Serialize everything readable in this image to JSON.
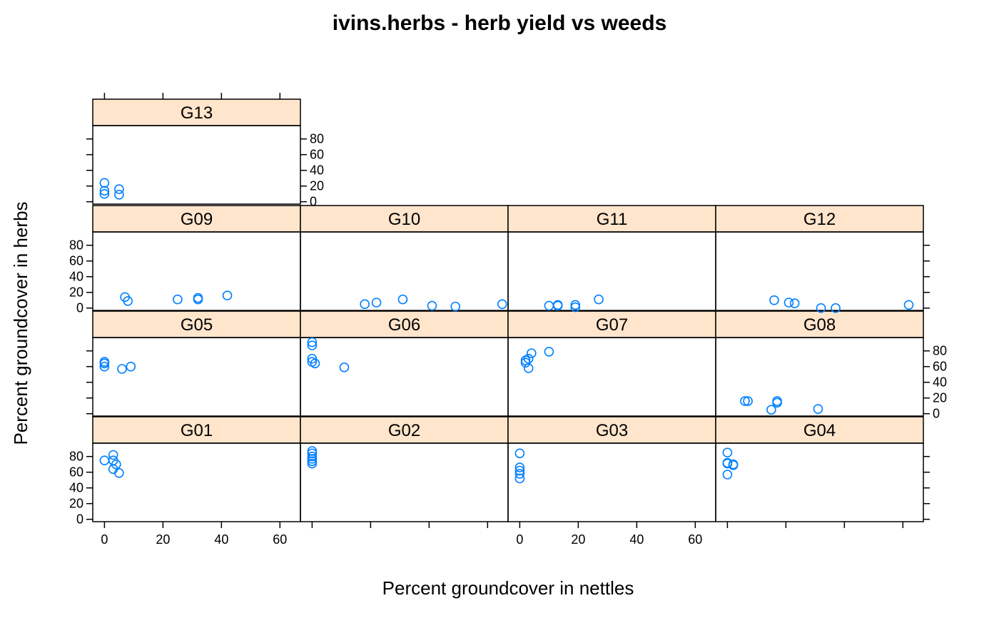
{
  "chart_data": {
    "type": "scatter",
    "title": "ivins.herbs - herb yield vs weeds",
    "xlabel": "Percent groundcover in nettles",
    "ylabel": "Percent groundcover in herbs",
    "xlim": [
      -4,
      67
    ],
    "ylim": [
      -3,
      97
    ],
    "x_ticks": [
      0,
      20,
      40,
      60
    ],
    "y_ticks": [
      0,
      20,
      40,
      60,
      80
    ],
    "point_color": "#0080ff",
    "strip_color": "#ffe5cc",
    "panels": [
      {
        "name": "G01",
        "points": [
          [
            0,
            75
          ],
          [
            3,
            82
          ],
          [
            3,
            75
          ],
          [
            4,
            70
          ],
          [
            3,
            64
          ],
          [
            5,
            59
          ]
        ]
      },
      {
        "name": "G02",
        "points": [
          [
            0,
            87
          ],
          [
            0,
            84
          ],
          [
            0,
            80
          ],
          [
            0,
            77
          ],
          [
            0,
            74
          ],
          [
            0,
            71
          ]
        ]
      },
      {
        "name": "G03",
        "points": [
          [
            0,
            84
          ],
          [
            0,
            66
          ],
          [
            0,
            62
          ],
          [
            0,
            58
          ],
          [
            0,
            52
          ]
        ]
      },
      {
        "name": "G04",
        "points": [
          [
            0,
            85
          ],
          [
            0,
            72
          ],
          [
            0,
            71
          ],
          [
            2,
            70
          ],
          [
            2,
            69
          ],
          [
            0,
            57
          ]
        ]
      },
      {
        "name": "G05",
        "points": [
          [
            0,
            66
          ],
          [
            0,
            64
          ],
          [
            0,
            60
          ],
          [
            6,
            57
          ],
          [
            9,
            60
          ]
        ]
      },
      {
        "name": "G06",
        "points": [
          [
            0,
            91
          ],
          [
            0,
            87
          ],
          [
            0,
            70
          ],
          [
            0,
            66
          ],
          [
            1,
            64
          ],
          [
            11,
            59
          ]
        ]
      },
      {
        "name": "G07",
        "points": [
          [
            10,
            79
          ],
          [
            4,
            77
          ],
          [
            3,
            70
          ],
          [
            2,
            68
          ],
          [
            2,
            65
          ],
          [
            3,
            58
          ]
        ]
      },
      {
        "name": "G08",
        "points": [
          [
            6,
            16
          ],
          [
            7,
            16
          ],
          [
            17,
            16
          ],
          [
            17,
            14
          ],
          [
            15,
            5
          ],
          [
            31,
            6
          ]
        ]
      },
      {
        "name": "G09",
        "points": [
          [
            7,
            14
          ],
          [
            8,
            9
          ],
          [
            25,
            11
          ],
          [
            32,
            13
          ],
          [
            32,
            11
          ],
          [
            42,
            16
          ]
        ]
      },
      {
        "name": "G10",
        "points": [
          [
            18,
            5
          ],
          [
            22,
            7
          ],
          [
            31,
            11
          ],
          [
            41,
            3
          ],
          [
            49,
            2
          ],
          [
            65,
            5
          ]
        ]
      },
      {
        "name": "G11",
        "points": [
          [
            10,
            3
          ],
          [
            13,
            4
          ],
          [
            13,
            3
          ],
          [
            19,
            4
          ],
          [
            19,
            1
          ],
          [
            27,
            11
          ]
        ]
      },
      {
        "name": "G12",
        "points": [
          [
            16,
            10
          ],
          [
            21,
            7
          ],
          [
            23,
            6
          ],
          [
            32,
            0
          ],
          [
            37,
            0
          ],
          [
            62,
            4
          ]
        ]
      },
      {
        "name": "G13",
        "points": [
          [
            0,
            24
          ],
          [
            0,
            14
          ],
          [
            0,
            10
          ],
          [
            5,
            16
          ],
          [
            5,
            9
          ]
        ]
      }
    ]
  }
}
